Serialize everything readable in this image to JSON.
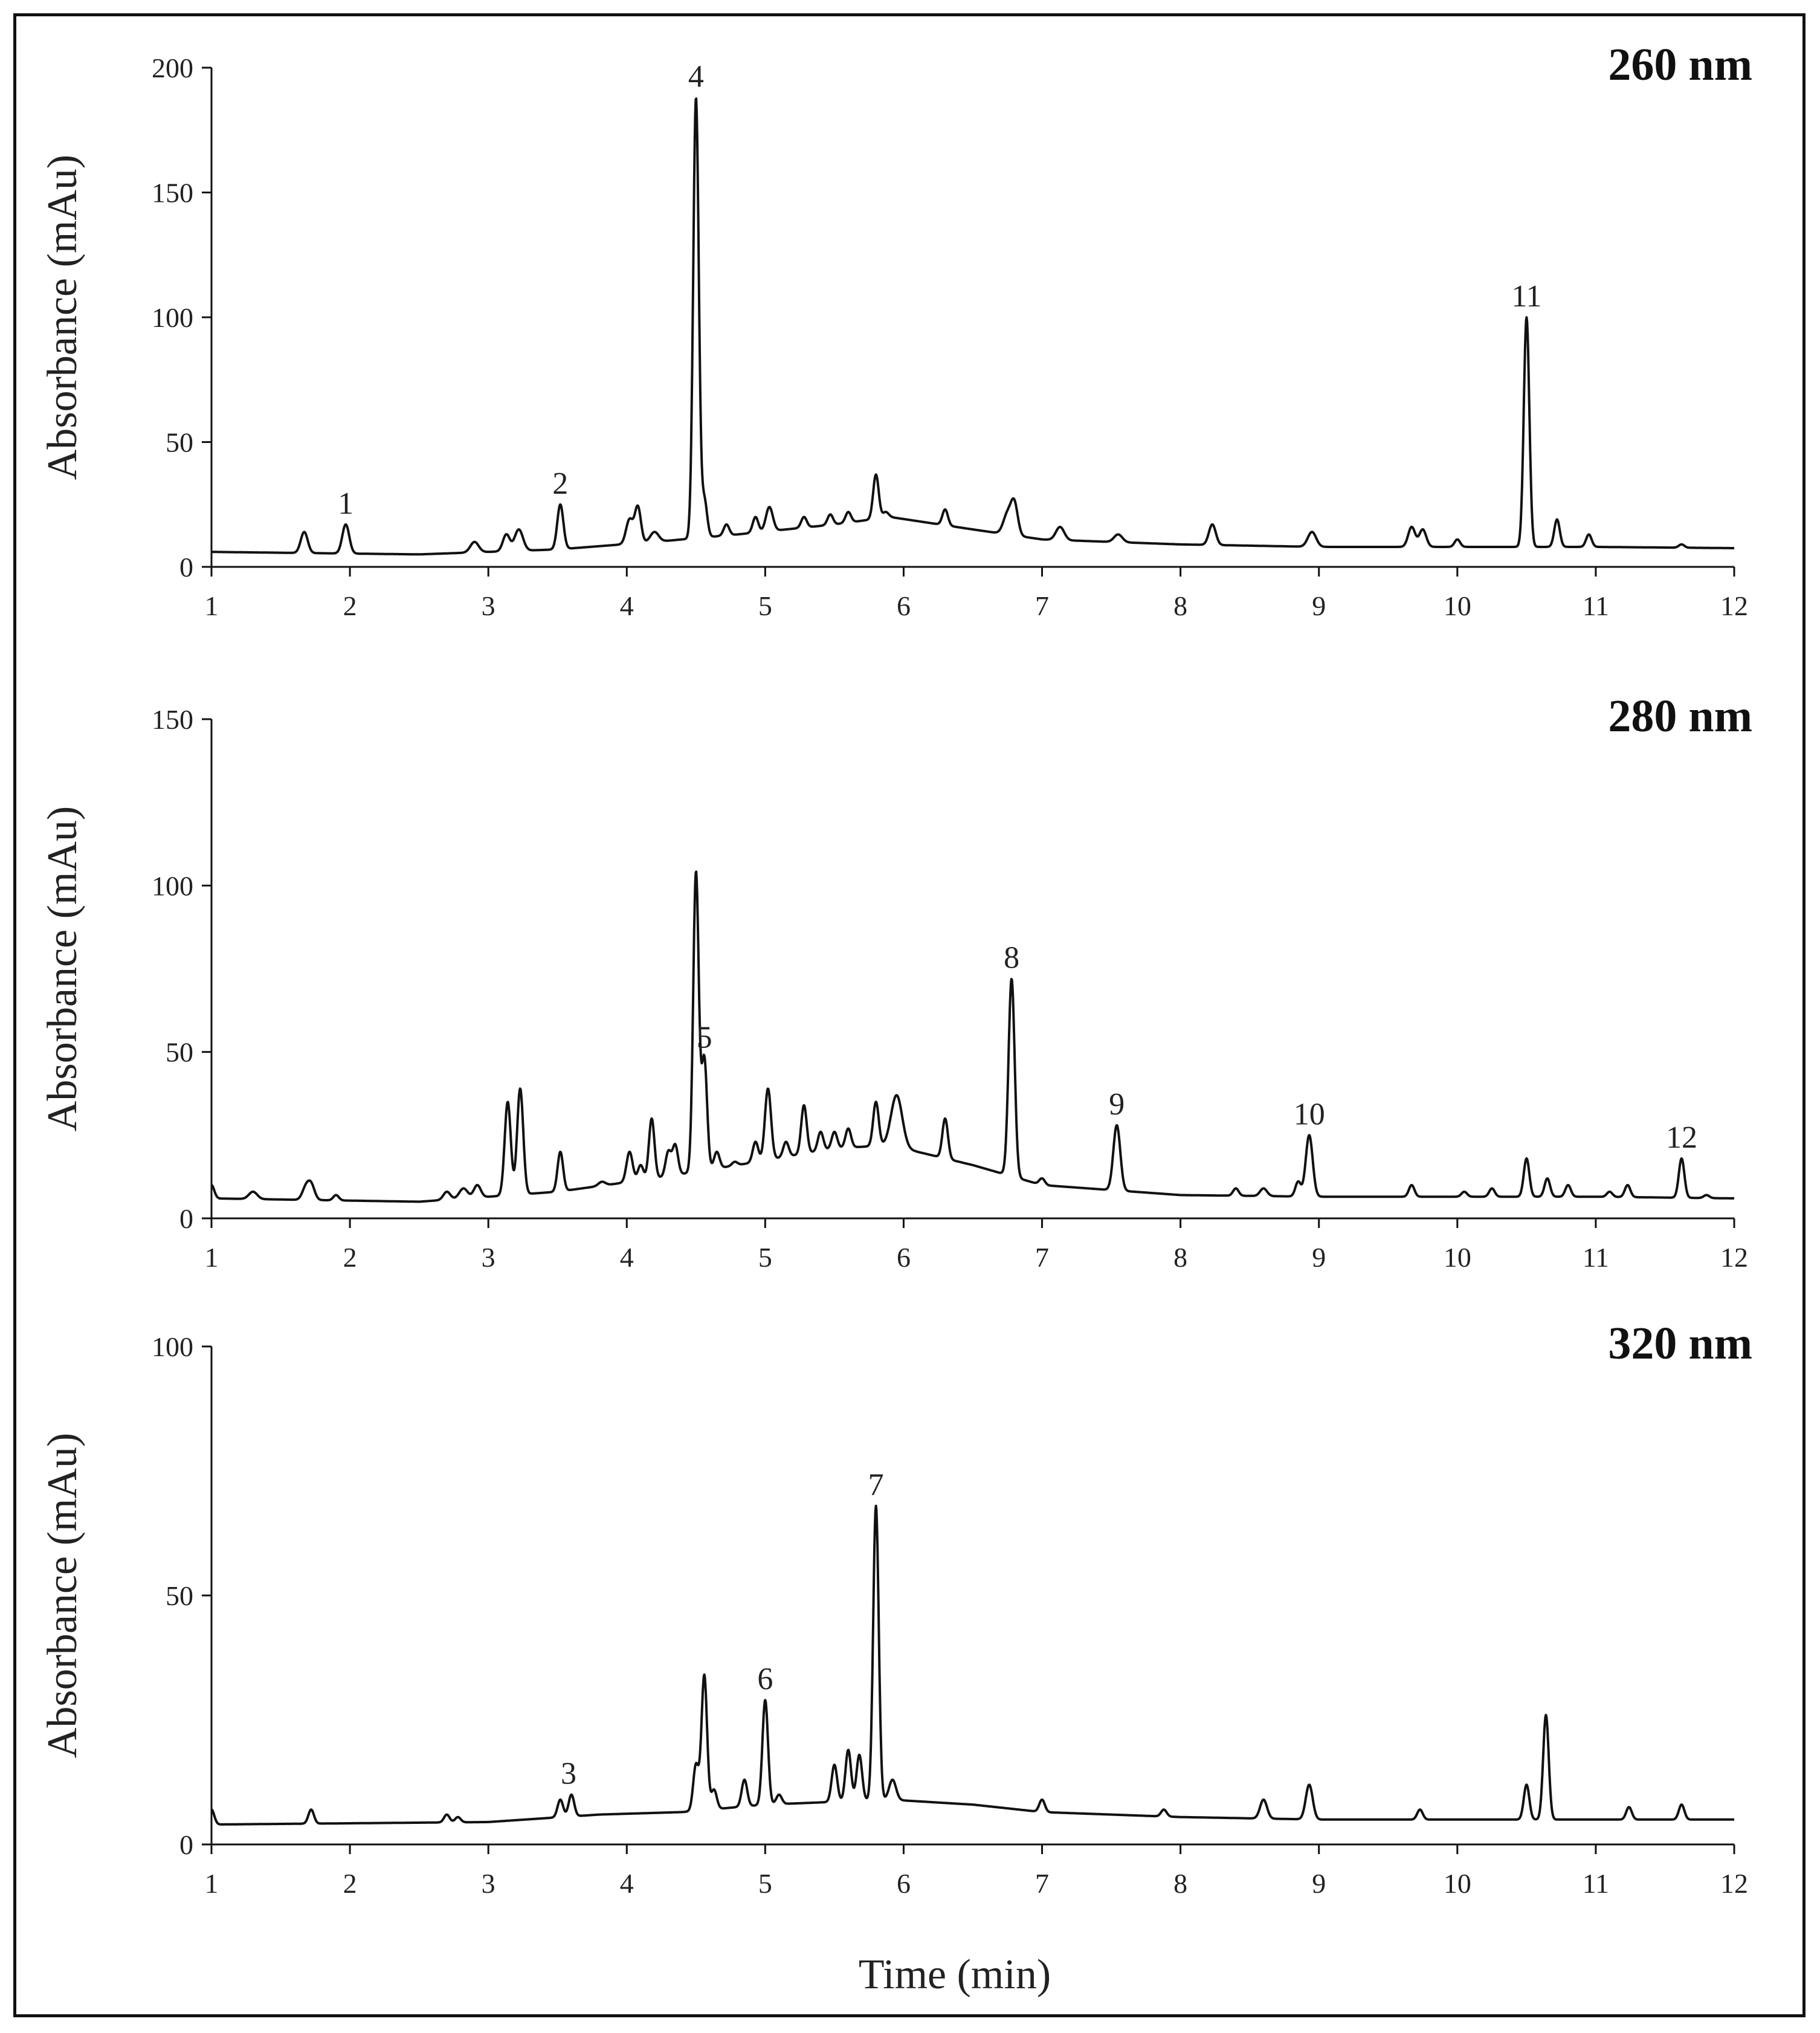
{
  "chart_data": [
    {
      "type": "line",
      "title": "260 nm",
      "xlabel": "Time (min)",
      "ylabel": "Absorbance (mAu)",
      "xlim": [
        1,
        12
      ],
      "ylim": [
        0,
        200
      ],
      "x_ticks": [
        1,
        2,
        3,
        4,
        5,
        6,
        7,
        8,
        9,
        10,
        11,
        12
      ],
      "y_ticks": [
        0,
        50,
        100,
        150,
        200
      ],
      "baseline": [
        [
          1,
          6
        ],
        [
          2.5,
          5
        ],
        [
          3.5,
          7
        ],
        [
          4.2,
          10
        ],
        [
          4.8,
          13
        ],
        [
          5.5,
          17
        ],
        [
          5.9,
          20
        ],
        [
          6.5,
          15
        ],
        [
          7,
          11
        ],
        [
          8,
          9
        ],
        [
          9,
          8
        ],
        [
          10,
          8
        ],
        [
          11,
          8
        ],
        [
          12,
          7.5
        ]
      ],
      "peaks": [
        {
          "t": 1.67,
          "h": 14,
          "w": 0.025
        },
        {
          "t": 1.97,
          "h": 17,
          "w": 0.025
        },
        {
          "t": 2.9,
          "h": 10,
          "w": 0.03
        },
        {
          "t": 3.13,
          "h": 13,
          "w": 0.025
        },
        {
          "t": 3.22,
          "h": 15,
          "w": 0.03
        },
        {
          "t": 3.52,
          "h": 25,
          "w": 0.022
        },
        {
          "t": 4.02,
          "h": 19,
          "w": 0.025
        },
        {
          "t": 4.08,
          "h": 24,
          "w": 0.022
        },
        {
          "t": 4.2,
          "h": 14,
          "w": 0.03
        },
        {
          "t": 4.5,
          "h": 188,
          "w": 0.02
        },
        {
          "t": 4.56,
          "h": 27,
          "w": 0.02
        },
        {
          "t": 4.72,
          "h": 17,
          "w": 0.02
        },
        {
          "t": 4.93,
          "h": 20,
          "w": 0.02
        },
        {
          "t": 5.03,
          "h": 24,
          "w": 0.025
        },
        {
          "t": 5.28,
          "h": 20,
          "w": 0.02
        },
        {
          "t": 5.47,
          "h": 21,
          "w": 0.02
        },
        {
          "t": 5.6,
          "h": 22,
          "w": 0.02
        },
        {
          "t": 5.8,
          "h": 37,
          "w": 0.02
        },
        {
          "t": 5.87,
          "h": 22,
          "w": 0.02
        },
        {
          "t": 6.3,
          "h": 23,
          "w": 0.02
        },
        {
          "t": 6.75,
          "h": 21,
          "w": 0.03
        },
        {
          "t": 6.8,
          "h": 25,
          "w": 0.025
        },
        {
          "t": 7.13,
          "h": 16,
          "w": 0.03
        },
        {
          "t": 7.55,
          "h": 13,
          "w": 0.03
        },
        {
          "t": 8.23,
          "h": 17,
          "w": 0.025
        },
        {
          "t": 8.95,
          "h": 14,
          "w": 0.03
        },
        {
          "t": 9.67,
          "h": 16,
          "w": 0.025
        },
        {
          "t": 9.75,
          "h": 15,
          "w": 0.025
        },
        {
          "t": 10.0,
          "h": 11,
          "w": 0.02
        },
        {
          "t": 10.5,
          "h": 100,
          "w": 0.02
        },
        {
          "t": 10.72,
          "h": 19,
          "w": 0.02
        },
        {
          "t": 10.95,
          "h": 13,
          "w": 0.02
        },
        {
          "t": 11.62,
          "h": 9,
          "w": 0.02
        }
      ],
      "peak_labels": [
        {
          "label": "1",
          "t": 1.97,
          "h": 17
        },
        {
          "label": "2",
          "t": 3.52,
          "h": 25
        },
        {
          "label": "4",
          "t": 4.5,
          "h": 188
        },
        {
          "label": "11",
          "t": 10.5,
          "h": 100
        }
      ]
    },
    {
      "type": "line",
      "title": "280 nm",
      "xlabel": "Time (min)",
      "ylabel": "Absorbance (mAu)",
      "xlim": [
        1,
        12
      ],
      "ylim": [
        0,
        150
      ],
      "x_ticks": [
        1,
        2,
        3,
        4,
        5,
        6,
        7,
        8,
        9,
        10,
        11,
        12
      ],
      "y_ticks": [
        0,
        50,
        100,
        150
      ],
      "baseline": [
        [
          1,
          6
        ],
        [
          2.5,
          5
        ],
        [
          3.5,
          8
        ],
        [
          4.2,
          12
        ],
        [
          4.8,
          16
        ],
        [
          5.5,
          21
        ],
        [
          5.9,
          22
        ],
        [
          6.5,
          16
        ],
        [
          7,
          10
        ],
        [
          8,
          7
        ],
        [
          9,
          6.5
        ],
        [
          10,
          6.5
        ],
        [
          11,
          6.5
        ],
        [
          12,
          6
        ]
      ],
      "peaks": [
        {
          "t": 1.0,
          "h": 10,
          "w": 0.02
        },
        {
          "t": 1.3,
          "h": 8,
          "w": 0.03
        },
        {
          "t": 1.68,
          "h": 9,
          "w": 0.025
        },
        {
          "t": 1.72,
          "h": 10,
          "w": 0.025
        },
        {
          "t": 1.9,
          "h": 7,
          "w": 0.02
        },
        {
          "t": 2.7,
          "h": 8,
          "w": 0.025
        },
        {
          "t": 2.82,
          "h": 9,
          "w": 0.03
        },
        {
          "t": 2.92,
          "h": 10,
          "w": 0.025
        },
        {
          "t": 3.14,
          "h": 35,
          "w": 0.022
        },
        {
          "t": 3.23,
          "h": 39,
          "w": 0.022
        },
        {
          "t": 3.52,
          "h": 20,
          "w": 0.02
        },
        {
          "t": 3.82,
          "h": 11,
          "w": 0.025
        },
        {
          "t": 4.02,
          "h": 20,
          "w": 0.022
        },
        {
          "t": 4.1,
          "h": 16,
          "w": 0.02
        },
        {
          "t": 4.18,
          "h": 30,
          "w": 0.02
        },
        {
          "t": 4.3,
          "h": 20,
          "w": 0.02
        },
        {
          "t": 4.35,
          "h": 22,
          "w": 0.02
        },
        {
          "t": 4.5,
          "h": 104,
          "w": 0.02
        },
        {
          "t": 4.56,
          "h": 48,
          "w": 0.02
        },
        {
          "t": 4.65,
          "h": 20,
          "w": 0.02
        },
        {
          "t": 4.78,
          "h": 17,
          "w": 0.02
        },
        {
          "t": 4.93,
          "h": 23,
          "w": 0.02
        },
        {
          "t": 5.02,
          "h": 39,
          "w": 0.022
        },
        {
          "t": 5.15,
          "h": 23,
          "w": 0.02
        },
        {
          "t": 5.28,
          "h": 34,
          "w": 0.02
        },
        {
          "t": 5.4,
          "h": 26,
          "w": 0.02
        },
        {
          "t": 5.5,
          "h": 26,
          "w": 0.02
        },
        {
          "t": 5.6,
          "h": 27,
          "w": 0.02
        },
        {
          "t": 5.8,
          "h": 35,
          "w": 0.02
        },
        {
          "t": 5.95,
          "h": 37,
          "w": 0.04
        },
        {
          "t": 6.3,
          "h": 30,
          "w": 0.02
        },
        {
          "t": 6.78,
          "h": 72,
          "w": 0.022
        },
        {
          "t": 7.0,
          "h": 12,
          "w": 0.02
        },
        {
          "t": 7.54,
          "h": 28,
          "w": 0.025
        },
        {
          "t": 8.4,
          "h": 9,
          "w": 0.02
        },
        {
          "t": 8.6,
          "h": 9,
          "w": 0.025
        },
        {
          "t": 8.85,
          "h": 11,
          "w": 0.02
        },
        {
          "t": 8.93,
          "h": 25,
          "w": 0.025
        },
        {
          "t": 9.67,
          "h": 10,
          "w": 0.02
        },
        {
          "t": 10.05,
          "h": 8,
          "w": 0.02
        },
        {
          "t": 10.25,
          "h": 9,
          "w": 0.02
        },
        {
          "t": 10.5,
          "h": 18,
          "w": 0.02
        },
        {
          "t": 10.65,
          "h": 12,
          "w": 0.02
        },
        {
          "t": 10.8,
          "h": 10,
          "w": 0.02
        },
        {
          "t": 11.1,
          "h": 8,
          "w": 0.02
        },
        {
          "t": 11.23,
          "h": 10,
          "w": 0.02
        },
        {
          "t": 11.62,
          "h": 18,
          "w": 0.02
        },
        {
          "t": 11.8,
          "h": 7,
          "w": 0.02
        }
      ],
      "peak_labels": [
        {
          "label": "5",
          "t": 4.56,
          "h": 48
        },
        {
          "label": "8",
          "t": 6.78,
          "h": 72
        },
        {
          "label": "9",
          "t": 7.54,
          "h": 28
        },
        {
          "label": "10",
          "t": 8.93,
          "h": 25
        },
        {
          "label": "12",
          "t": 11.62,
          "h": 18
        }
      ]
    },
    {
      "type": "line",
      "title": "320 nm",
      "xlabel": "Time (min)",
      "ylabel": "Absorbance (mAu)",
      "xlim": [
        1,
        12
      ],
      "ylim": [
        0,
        100
      ],
      "x_ticks": [
        1,
        2,
        3,
        4,
        5,
        6,
        7,
        8,
        9,
        10,
        11,
        12
      ],
      "y_ticks": [
        0,
        50,
        100
      ],
      "baseline": [
        [
          1,
          4
        ],
        [
          3,
          4.5
        ],
        [
          3.8,
          6
        ],
        [
          4.4,
          6.5
        ],
        [
          5,
          8
        ],
        [
          5.9,
          9
        ],
        [
          6.5,
          8
        ],
        [
          7,
          6.5
        ],
        [
          8,
          5.5
        ],
        [
          9,
          5
        ],
        [
          10,
          5
        ],
        [
          11,
          5
        ],
        [
          12,
          5
        ]
      ],
      "peaks": [
        {
          "t": 1.0,
          "h": 7,
          "w": 0.02
        },
        {
          "t": 1.72,
          "h": 7,
          "w": 0.02
        },
        {
          "t": 2.7,
          "h": 6,
          "w": 0.02
        },
        {
          "t": 2.78,
          "h": 5.5,
          "w": 0.02
        },
        {
          "t": 3.52,
          "h": 9,
          "w": 0.02
        },
        {
          "t": 3.6,
          "h": 10,
          "w": 0.02
        },
        {
          "t": 4.5,
          "h": 16,
          "w": 0.02
        },
        {
          "t": 4.56,
          "h": 34,
          "w": 0.02
        },
        {
          "t": 4.63,
          "h": 11,
          "w": 0.02
        },
        {
          "t": 4.85,
          "h": 13,
          "w": 0.02
        },
        {
          "t": 5.0,
          "h": 29,
          "w": 0.02
        },
        {
          "t": 5.1,
          "h": 10,
          "w": 0.02
        },
        {
          "t": 5.5,
          "h": 16,
          "w": 0.02
        },
        {
          "t": 5.6,
          "h": 19,
          "w": 0.02
        },
        {
          "t": 5.68,
          "h": 18,
          "w": 0.02
        },
        {
          "t": 5.8,
          "h": 68,
          "w": 0.02
        },
        {
          "t": 5.92,
          "h": 13,
          "w": 0.025
        },
        {
          "t": 6.3,
          "h": 8,
          "w": 0.02
        },
        {
          "t": 7.0,
          "h": 9,
          "w": 0.02
        },
        {
          "t": 7.88,
          "h": 7,
          "w": 0.02
        },
        {
          "t": 8.6,
          "h": 9,
          "w": 0.025
        },
        {
          "t": 8.93,
          "h": 12,
          "w": 0.025
        },
        {
          "t": 9.73,
          "h": 7,
          "w": 0.02
        },
        {
          "t": 10.5,
          "h": 12,
          "w": 0.02
        },
        {
          "t": 10.64,
          "h": 26,
          "w": 0.02
        },
        {
          "t": 11.24,
          "h": 7.5,
          "w": 0.02
        },
        {
          "t": 11.62,
          "h": 8,
          "w": 0.02
        }
      ],
      "peak_labels": [
        {
          "label": "3",
          "t": 3.58,
          "h": 10
        },
        {
          "label": "6",
          "t": 5.0,
          "h": 29
        },
        {
          "label": "7",
          "t": 5.8,
          "h": 68
        }
      ]
    }
  ]
}
